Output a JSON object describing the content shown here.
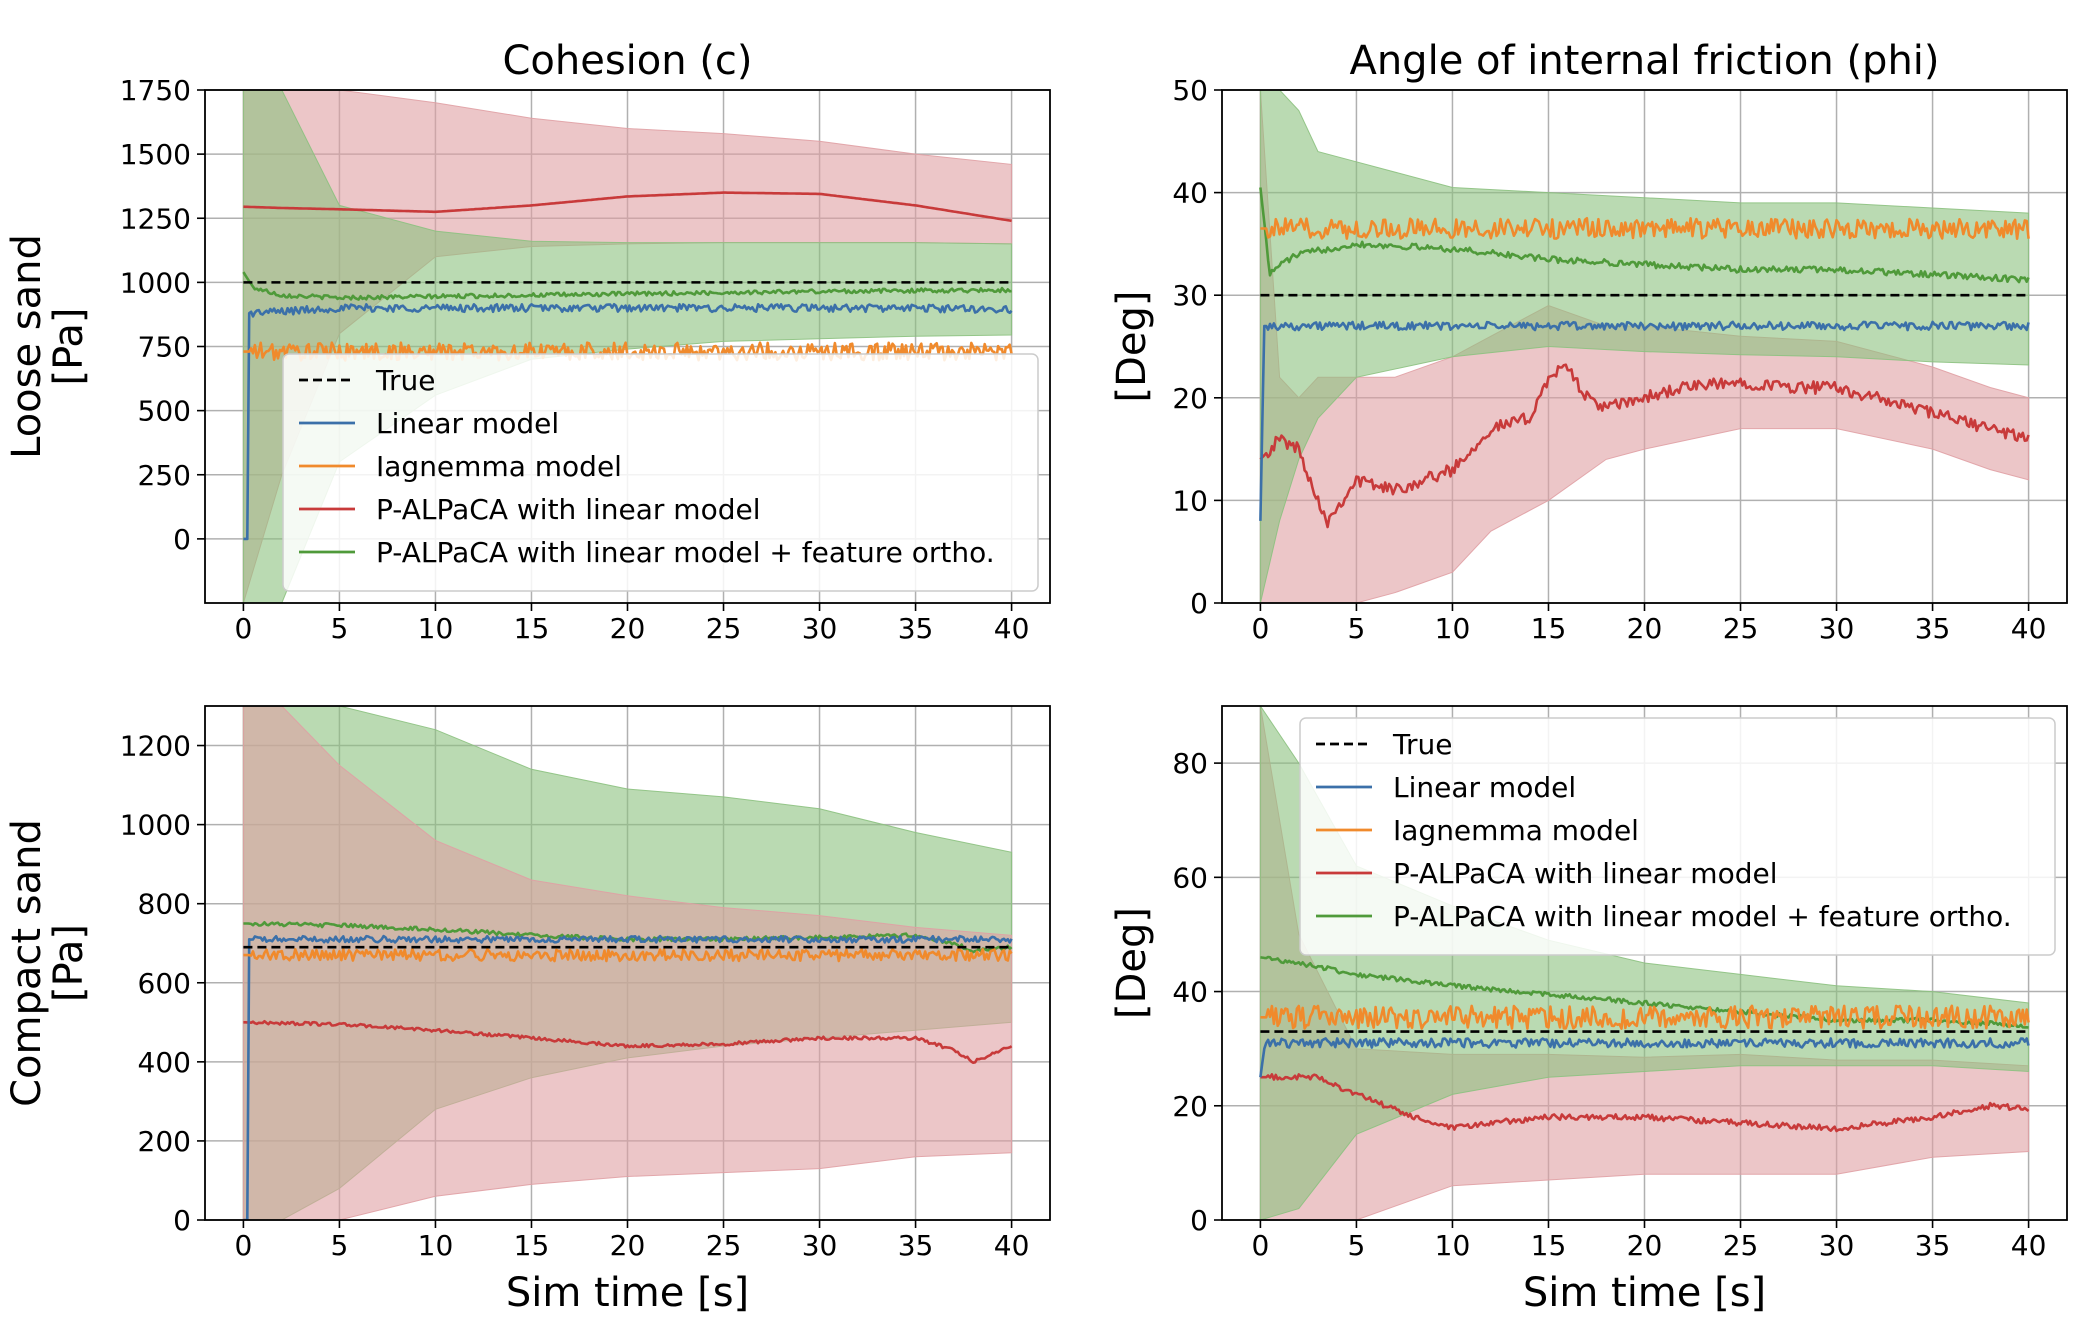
{
  "figure": {
    "colors": {
      "true": "#000000",
      "linear": "#3b70a9",
      "iagnemma": "#f08a2c",
      "palpaca": "#c83a3a",
      "palpaca_ortho": "#4f9a3a",
      "palpaca_band": "#e0a0a4",
      "palpaca_ortho_band": "#8cc17f",
      "grid": "#b0b0b0"
    },
    "legend_entries": [
      {
        "key": "true",
        "label": "True",
        "dash": true
      },
      {
        "key": "linear",
        "label": "Linear model"
      },
      {
        "key": "iagnemma",
        "label": "Iagnemma model"
      },
      {
        "key": "palpaca",
        "label": "P-ALPaCA with linear model"
      },
      {
        "key": "palpaca_ortho",
        "label": "P-ALPaCA with linear model + feature ortho."
      }
    ]
  },
  "chart_data": [
    {
      "id": "tl",
      "type": "line",
      "title": "Cohesion (c)",
      "ylabel_lines": [
        "Loose sand",
        "[Pa]"
      ],
      "xlabel": "",
      "xlim": [
        -2,
        42
      ],
      "ylim": [
        -250,
        1750
      ],
      "xticks": [
        0,
        5,
        10,
        15,
        20,
        25,
        30,
        35,
        40
      ],
      "yticks": [
        0,
        250,
        500,
        750,
        1000,
        1250,
        1500,
        1750
      ],
      "legend": "bottom-right",
      "true_value": 1000,
      "bands": [
        {
          "key": "palpaca_band",
          "x": [
            0,
            2,
            5,
            10,
            15,
            20,
            25,
            30,
            35,
            40
          ],
          "lower": [
            -250,
            250,
            800,
            1100,
            1140,
            1150,
            1155,
            1155,
            1155,
            1150
          ],
          "upper": [
            1750,
            1750,
            1750,
            1700,
            1640,
            1600,
            1580,
            1550,
            1500,
            1460
          ]
        },
        {
          "key": "palpaca_ortho_band",
          "x": [
            0,
            2,
            5,
            10,
            15,
            20,
            25,
            30,
            35,
            40
          ],
          "lower": [
            -250,
            -250,
            300,
            560,
            700,
            740,
            770,
            780,
            790,
            795
          ],
          "upper": [
            1750,
            1750,
            1300,
            1200,
            1160,
            1155,
            1155,
            1155,
            1155,
            1150
          ]
        }
      ],
      "series": [
        {
          "key": "palpaca",
          "name": "P-ALPaCA with linear model",
          "x": [
            0,
            2,
            5,
            10,
            15,
            20,
            25,
            30,
            35,
            40
          ],
          "values": [
            1295,
            1290,
            1285,
            1275,
            1300,
            1335,
            1350,
            1345,
            1300,
            1240
          ],
          "noise": 0
        },
        {
          "key": "palpaca_ortho",
          "name": "P-ALPaCA with linear model + feature ortho.",
          "x": [
            0,
            0.5,
            2,
            5,
            10,
            15,
            20,
            25,
            30,
            35,
            40
          ],
          "values": [
            1040,
            980,
            950,
            940,
            945,
            950,
            955,
            960,
            965,
            968,
            970
          ],
          "noise": 8
        },
        {
          "key": "linear",
          "name": "Linear model",
          "x": [
            0,
            0.2,
            0.3,
            5,
            10,
            15,
            20,
            25,
            30,
            35,
            40
          ],
          "values": [
            0,
            0,
            880,
            900,
            900,
            900,
            900,
            900,
            900,
            900,
            895
          ],
          "noise": 15
        },
        {
          "key": "iagnemma",
          "name": "Iagnemma model",
          "x": [
            0,
            40
          ],
          "values": [
            730,
            730
          ],
          "noise": 35
        }
      ]
    },
    {
      "id": "tr",
      "type": "line",
      "title": "Angle of internal friction (phi)",
      "ylabel_lines": [
        "[Deg]"
      ],
      "xlabel": "",
      "xlim": [
        -2,
        42
      ],
      "ylim": [
        0,
        50
      ],
      "xticks": [
        0,
        5,
        10,
        15,
        20,
        25,
        30,
        35,
        40
      ],
      "yticks": [
        0,
        10,
        20,
        30,
        40,
        50
      ],
      "legend": "none",
      "true_value": 30,
      "bands": [
        {
          "key": "palpaca_band",
          "x": [
            0,
            1,
            2,
            3,
            5,
            7,
            10,
            12,
            15,
            18,
            20,
            25,
            30,
            35,
            38,
            40
          ],
          "lower": [
            0,
            0,
            0,
            0,
            0,
            1,
            3,
            7,
            10,
            14,
            15,
            17,
            17,
            15,
            13,
            12
          ],
          "upper": [
            50,
            22,
            20,
            22,
            22,
            22,
            24,
            26,
            29,
            27,
            27,
            26,
            25.5,
            23,
            21,
            20
          ]
        },
        {
          "key": "palpaca_ortho_band",
          "x": [
            0,
            1,
            2,
            3,
            5,
            10,
            15,
            20,
            25,
            30,
            35,
            40
          ],
          "lower": [
            0,
            8,
            14,
            18,
            22,
            24,
            25,
            24.5,
            24.2,
            24,
            23.5,
            23.2
          ],
          "upper": [
            50,
            50,
            48,
            44,
            43,
            40.5,
            40,
            39.5,
            39,
            39,
            38.5,
            38
          ]
        }
      ],
      "series": [
        {
          "key": "palpaca",
          "name": "P-ALPaCA with linear model",
          "x": [
            0,
            1,
            2,
            3,
            3.5,
            5,
            7,
            10,
            12,
            14,
            15,
            16,
            17,
            18,
            20,
            22,
            25,
            28,
            30,
            33,
            35,
            38,
            40
          ],
          "values": [
            14,
            16,
            15,
            10,
            8,
            12,
            11,
            13,
            17,
            18,
            22,
            23,
            20,
            19,
            20,
            21,
            21.5,
            21,
            21,
            19.5,
            18.5,
            17,
            16
          ],
          "noise": 0.6
        },
        {
          "key": "palpaca_ortho",
          "name": "P-ALPaCA with linear model + feature ortho.",
          "x": [
            0,
            0.5,
            1,
            2,
            5,
            10,
            15,
            20,
            25,
            30,
            35,
            40
          ],
          "values": [
            40.5,
            32,
            33,
            34,
            35,
            34.5,
            33.5,
            33,
            32.5,
            32.5,
            32,
            31.5
          ],
          "noise": 0.3
        },
        {
          "key": "linear",
          "name": "Linear model",
          "x": [
            0,
            0.2,
            0.3,
            5,
            10,
            15,
            20,
            25,
            30,
            35,
            40
          ],
          "values": [
            8,
            27,
            27,
            27,
            27,
            27,
            27,
            27,
            27,
            27,
            27
          ],
          "noise": 0.4
        },
        {
          "key": "iagnemma",
          "name": "Iagnemma model",
          "x": [
            0,
            40
          ],
          "values": [
            36.5,
            36.5
          ],
          "noise": 1.0
        }
      ]
    },
    {
      "id": "bl",
      "type": "line",
      "title": "",
      "ylabel_lines": [
        "Compact sand",
        "[Pa]"
      ],
      "xlabel": "Sim time [s]",
      "xlim": [
        -2,
        42
      ],
      "ylim": [
        0,
        1300
      ],
      "xticks": [
        0,
        5,
        10,
        15,
        20,
        25,
        30,
        35,
        40
      ],
      "yticks": [
        0,
        200,
        400,
        600,
        800,
        1000,
        1200
      ],
      "legend": "none",
      "true_value": 690,
      "bands": [
        {
          "key": "palpaca_ortho_band",
          "x": [
            0,
            2,
            5,
            10,
            15,
            20,
            25,
            30,
            35,
            40
          ],
          "lower": [
            0,
            0,
            80,
            280,
            360,
            410,
            440,
            460,
            480,
            500
          ],
          "upper": [
            1300,
            1300,
            1300,
            1240,
            1140,
            1090,
            1070,
            1040,
            980,
            930
          ]
        },
        {
          "key": "palpaca_band",
          "x": [
            0,
            2,
            5,
            10,
            15,
            20,
            25,
            30,
            35,
            40
          ],
          "lower": [
            0,
            0,
            0,
            60,
            90,
            110,
            120,
            130,
            160,
            170
          ],
          "upper": [
            1300,
            1300,
            1150,
            960,
            860,
            820,
            790,
            770,
            740,
            720
          ]
        }
      ],
      "series": [
        {
          "key": "palpaca",
          "name": "P-ALPaCA with linear model",
          "x": [
            0,
            5,
            10,
            15,
            20,
            25,
            30,
            35,
            37,
            38,
            40
          ],
          "values": [
            500,
            495,
            480,
            460,
            440,
            445,
            460,
            460,
            430,
            400,
            440
          ],
          "noise": 4
        },
        {
          "key": "palpaca_ortho",
          "name": "P-ALPaCA with linear model + feature ortho.",
          "x": [
            0,
            5,
            10,
            15,
            20,
            25,
            30,
            35,
            37,
            38,
            40
          ],
          "values": [
            750,
            745,
            735,
            720,
            710,
            710,
            715,
            720,
            700,
            680,
            690
          ],
          "noise": 5
        },
        {
          "key": "linear",
          "name": "Linear model",
          "x": [
            0,
            0.2,
            0.3,
            5,
            10,
            15,
            20,
            25,
            30,
            35,
            40
          ],
          "values": [
            0,
            0,
            710,
            710,
            710,
            710,
            710,
            710,
            710,
            710,
            710
          ],
          "noise": 8
        },
        {
          "key": "iagnemma",
          "name": "Iagnemma model",
          "x": [
            0,
            40
          ],
          "values": [
            670,
            670
          ],
          "noise": 15
        }
      ]
    },
    {
      "id": "br",
      "type": "line",
      "title": "",
      "ylabel_lines": [
        "[Deg]"
      ],
      "xlabel": "Sim time [s]",
      "xlim": [
        -2,
        42
      ],
      "ylim": [
        0,
        90
      ],
      "xticks": [
        0,
        5,
        10,
        15,
        20,
        25,
        30,
        35,
        40
      ],
      "yticks": [
        0,
        20,
        40,
        60,
        80
      ],
      "legend": "top-right",
      "true_value": 33,
      "bands": [
        {
          "key": "palpaca_band",
          "x": [
            0,
            2,
            5,
            10,
            15,
            20,
            25,
            30,
            35,
            40
          ],
          "lower": [
            0,
            0,
            0,
            6,
            7,
            8,
            8,
            8,
            11,
            12
          ],
          "upper": [
            90,
            50,
            30,
            29,
            29,
            28.5,
            29,
            28,
            28,
            27
          ]
        },
        {
          "key": "palpaca_ortho_band",
          "x": [
            0,
            2,
            5,
            10,
            15,
            20,
            25,
            30,
            35,
            40
          ],
          "lower": [
            0,
            2,
            15,
            22,
            25,
            26,
            27,
            27,
            27,
            26
          ],
          "upper": [
            90,
            80,
            62,
            55,
            49,
            45,
            43,
            41,
            40,
            38
          ]
        }
      ],
      "series": [
        {
          "key": "palpaca",
          "name": "P-ALPaCA with linear model",
          "x": [
            0,
            3,
            5,
            8,
            10,
            12,
            15,
            20,
            25,
            30,
            35,
            38,
            40
          ],
          "values": [
            25,
            25,
            22,
            18,
            16,
            17,
            18,
            18,
            17,
            16,
            18,
            20,
            19.5
          ],
          "noise": 0.5
        },
        {
          "key": "palpaca_ortho",
          "name": "P-ALPaCA with linear model + feature ortho.",
          "x": [
            0,
            2,
            5,
            10,
            15,
            20,
            25,
            30,
            35,
            40
          ],
          "values": [
            46,
            45,
            43,
            41,
            39.5,
            38,
            36.5,
            35,
            35,
            34
          ],
          "noise": 0.4
        },
        {
          "key": "linear",
          "name": "Linear model",
          "x": [
            0,
            0.2,
            0.3,
            5,
            10,
            15,
            20,
            25,
            30,
            35,
            40
          ],
          "values": [
            25,
            30,
            31,
            31,
            31,
            31,
            31,
            31,
            31,
            31,
            31
          ],
          "noise": 0.8
        },
        {
          "key": "iagnemma",
          "name": "Iagnemma model",
          "x": [
            0,
            40
          ],
          "values": [
            35.5,
            35.5
          ],
          "noise": 2.0
        }
      ]
    }
  ]
}
